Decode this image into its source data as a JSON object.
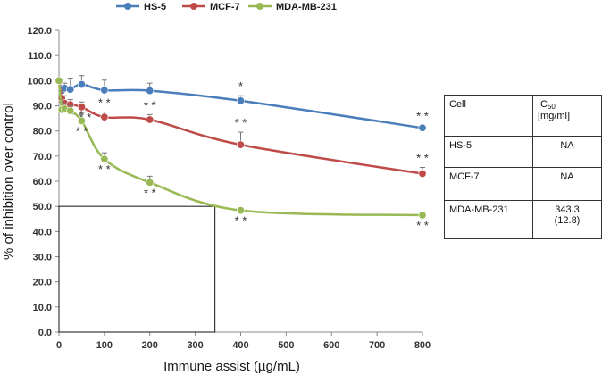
{
  "chart_data": {
    "type": "line",
    "title": "",
    "xlabel": "Immune assist (µg/mL)",
    "ylabel": "% of inhibition over control",
    "xlim": [
      0,
      800
    ],
    "ylim": [
      0,
      120
    ],
    "x_ticks": [
      "0",
      "100",
      "200",
      "300",
      "400",
      "500",
      "600",
      "700",
      "800"
    ],
    "y_ticks": [
      "0.0",
      "10.0",
      "20.0",
      "30.0",
      "40.0",
      "50.0",
      "60.0",
      "70.0",
      "80.0",
      "90.0",
      "100.0",
      "110.0",
      "120.0"
    ],
    "legend_position": "top",
    "series": [
      {
        "name": "HS-5",
        "color": "#4a7ebb",
        "x": [
          0,
          6.25,
          12.5,
          25,
          50,
          100,
          200,
          400,
          800
        ],
        "values": [
          100,
          96,
          97,
          96.5,
          98.5,
          96.2,
          96,
          92,
          81.2
        ],
        "errors": [
          0,
          2,
          2,
          4.5,
          3.5,
          4,
          3,
          2,
          1
        ],
        "sig": [
          "",
          "",
          "",
          "",
          "",
          "",
          "",
          "*",
          "**"
        ]
      },
      {
        "name": "MCF-7",
        "color": "#be4b48",
        "x": [
          0,
          6.25,
          12.5,
          25,
          50,
          100,
          200,
          400,
          800
        ],
        "values": [
          100,
          93,
          91,
          90.5,
          89.5,
          85.5,
          84.5,
          74.5,
          63
        ],
        "errors": [
          0,
          3,
          3,
          2,
          2,
          2,
          2,
          5,
          2.5
        ],
        "sig": [
          "",
          "",
          "",
          "**",
          "**",
          "**",
          "**",
          "**",
          "**"
        ]
      },
      {
        "name": "MDA-MB-231",
        "color": "#98b954",
        "x": [
          0,
          6.25,
          12.5,
          25,
          50,
          100,
          200,
          400,
          800
        ],
        "values": [
          100,
          88.5,
          88.8,
          88,
          84,
          68.8,
          59.5,
          48.4,
          46.5
        ],
        "errors": [
          0,
          3,
          2,
          2,
          3,
          2.5,
          2.5,
          1,
          1
        ],
        "sig": [
          "",
          "",
          "",
          "",
          "**",
          "**",
          "**",
          "**",
          "**"
        ]
      }
    ],
    "annotation_box": {
      "x_end": 343.3,
      "y_end": 50
    }
  },
  "table": {
    "header": {
      "cell": "Cell",
      "ic_prefix": "IC",
      "ic_sub": "50",
      "ic_unit": "[mg/ml]"
    },
    "rows": [
      {
        "cell": "HS-5",
        "value": "NA",
        "sd": ""
      },
      {
        "cell": "MCF-7",
        "value": "NA",
        "sd": ""
      },
      {
        "cell": "MDA-MB-231",
        "value": "343.3",
        "sd": "(12.8)"
      }
    ]
  }
}
